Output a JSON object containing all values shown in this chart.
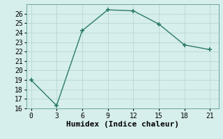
{
  "x": [
    0,
    3,
    6,
    9,
    12,
    15,
    18,
    21
  ],
  "y": [
    19,
    16.3,
    24.2,
    26.4,
    26.3,
    24.9,
    22.7,
    22.2
  ],
  "line_color": "#2a7a6a",
  "marker": "+",
  "marker_size": 4,
  "marker_linewidth": 1.2,
  "linewidth": 1.0,
  "xlabel": "Humidex (Indice chaleur)",
  "xlim": [
    -0.5,
    22
  ],
  "ylim": [
    16,
    27
  ],
  "xticks": [
    0,
    3,
    6,
    9,
    12,
    15,
    18,
    21
  ],
  "yticks": [
    16,
    17,
    18,
    19,
    20,
    21,
    22,
    23,
    24,
    25,
    26
  ],
  "bg_color": "#d6eeec",
  "grid_color": "#b8d8d4",
  "font_size": 7,
  "xlabel_fontsize": 8
}
